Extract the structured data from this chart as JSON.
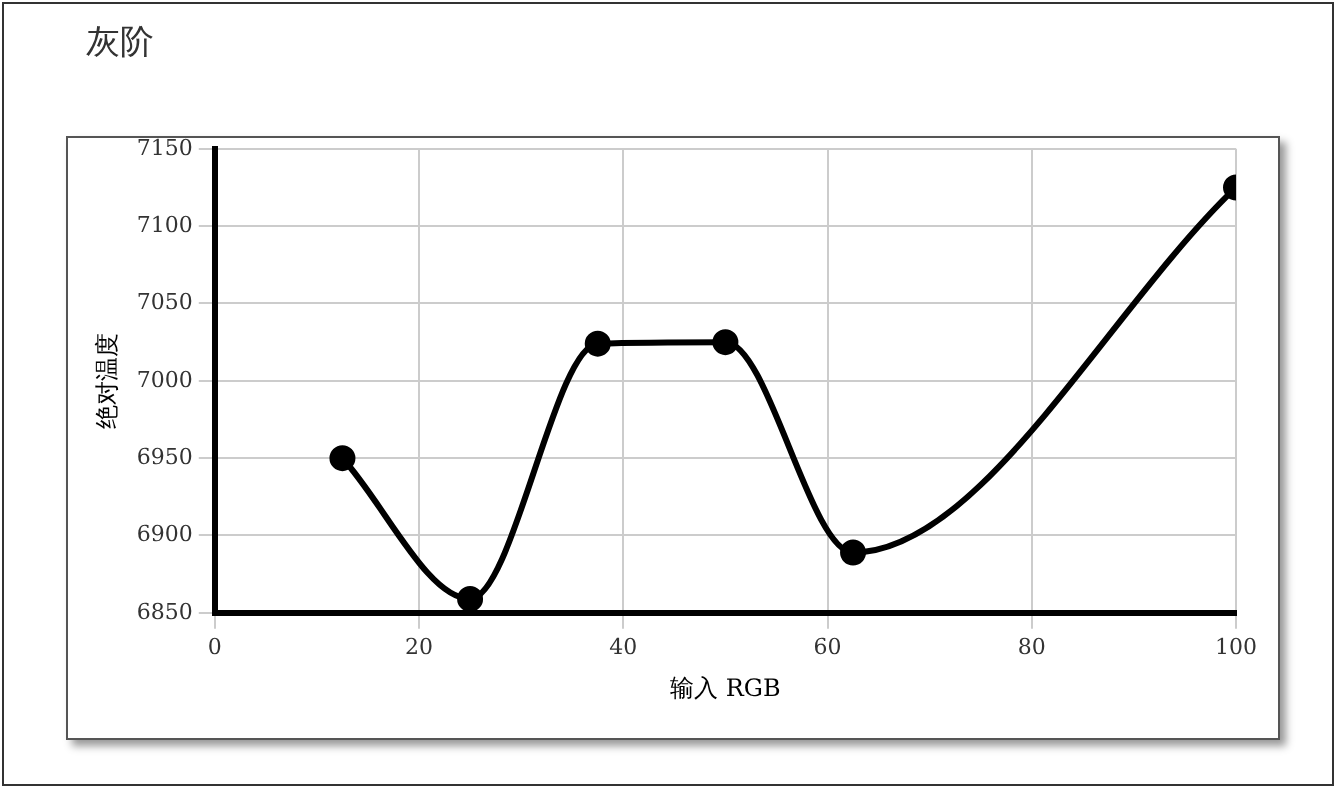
{
  "chart_data": {
    "type": "line",
    "title": "灰阶",
    "xlabel": "输入 RGB",
    "ylabel": "绝对温度",
    "x": [
      12.5,
      25,
      37.5,
      50,
      62.5,
      75,
      87.5,
      100
    ],
    "series": [
      {
        "color": "#000000",
        "values": [
          6950,
          6859,
          7024,
          7025,
          6889,
          null,
          null,
          7125
        ]
      }
    ],
    "xlim": [
      0,
      100
    ],
    "xticks": [
      0,
      20,
      40,
      60,
      80,
      100
    ],
    "ylim": [
      6850,
      7150
    ],
    "yticks": [
      6850,
      6900,
      6950,
      7000,
      7050,
      7100,
      7150
    ],
    "grid": true,
    "marker": "circle",
    "line_style": "solid",
    "legend": false
  }
}
